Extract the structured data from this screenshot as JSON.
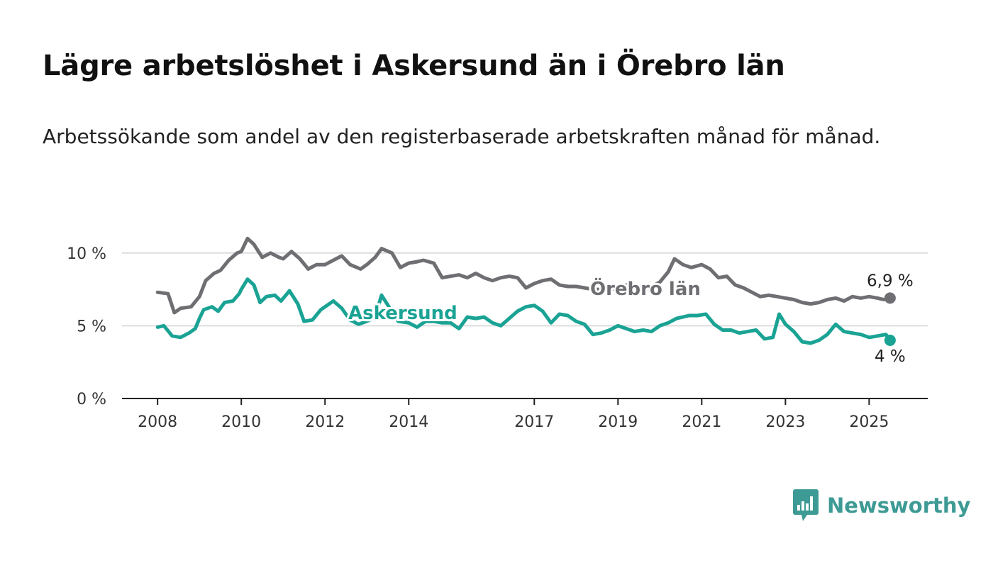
{
  "title": "Lägre arbetslöshet i Askersund än i Örebro län",
  "subtitle": "Arbetssökande som andel av den registerbaserade arbetskraften månad för månad.",
  "brand": {
    "name": "Newsworthy",
    "icon": "bar-chart-speech-bubble-icon"
  },
  "colors": {
    "orebro": "#6f6f73",
    "askersund": "#1aa394",
    "brand": "#3d9a94",
    "grid": "#dddddd",
    "axis": "#222222"
  },
  "chart_data": {
    "type": "line",
    "title": "Lägre arbetslöshet i Askersund än i Örebro län",
    "x_ticks": [
      2008,
      2010,
      2012,
      2014,
      2017,
      2019,
      2021,
      2023,
      2025
    ],
    "x_tick_labels": [
      "2008",
      "2010",
      "2012",
      "2014",
      "2017",
      "2019",
      "2021",
      "2023",
      "2025"
    ],
    "y_ticks": [
      0,
      5,
      10
    ],
    "y_tick_labels": [
      "0 %",
      "5 %",
      "10 %"
    ],
    "xlim": [
      2007.15,
      2026.4
    ],
    "ylim": [
      0,
      11.5
    ],
    "grid": "horizontal",
    "legend": "inline labels",
    "series": [
      {
        "name": "Örebro län",
        "end_label": "6,9 %",
        "x": [
          2008.0,
          2008.25,
          2008.4,
          2008.55,
          2008.8,
          2009.0,
          2009.15,
          2009.35,
          2009.5,
          2009.7,
          2009.9,
          2010.0,
          2010.15,
          2010.3,
          2010.5,
          2010.7,
          2010.9,
          2011.0,
          2011.2,
          2011.4,
          2011.6,
          2011.8,
          2012.0,
          2012.2,
          2012.4,
          2012.6,
          2012.85,
          2013.0,
          2013.2,
          2013.35,
          2013.6,
          2013.8,
          2014.0,
          2014.2,
          2014.35,
          2014.6,
          2014.8,
          2015.0,
          2015.2,
          2015.4,
          2015.6,
          2015.8,
          2016.0,
          2016.2,
          2016.4,
          2016.6,
          2016.8,
          2017.0,
          2017.2,
          2017.4,
          2017.6,
          2017.8,
          2018.0,
          2018.2,
          2018.4,
          2018.6,
          2018.8,
          2019.0,
          2019.2,
          2019.4,
          2019.6,
          2019.8,
          2020.0,
          2020.2,
          2020.35,
          2020.55,
          2020.75,
          2021.0,
          2021.2,
          2021.4,
          2021.6,
          2021.8,
          2022.0,
          2022.2,
          2022.4,
          2022.6,
          2022.8,
          2023.0,
          2023.2,
          2023.4,
          2023.6,
          2023.8,
          2024.0,
          2024.2,
          2024.4,
          2024.6,
          2024.8,
          2025.0,
          2025.2,
          2025.35,
          2025.5
        ],
        "y": [
          7.3,
          7.2,
          5.9,
          6.2,
          6.3,
          7.0,
          8.1,
          8.6,
          8.8,
          9.5,
          10.0,
          10.1,
          11.0,
          10.6,
          9.7,
          10.0,
          9.7,
          9.6,
          10.1,
          9.6,
          8.9,
          9.2,
          9.2,
          9.5,
          9.8,
          9.2,
          8.9,
          9.2,
          9.7,
          10.3,
          10.0,
          9.0,
          9.3,
          9.4,
          9.5,
          9.3,
          8.3,
          8.4,
          8.5,
          8.3,
          8.6,
          8.3,
          8.1,
          8.3,
          8.4,
          8.3,
          7.6,
          7.9,
          8.1,
          8.2,
          7.8,
          7.7,
          7.7,
          7.6,
          7.5,
          7.5,
          7.5,
          7.6,
          7.8,
          7.6,
          7.5,
          7.7,
          8.0,
          8.7,
          9.6,
          9.2,
          9.0,
          9.2,
          8.9,
          8.3,
          8.4,
          7.8,
          7.6,
          7.3,
          7.0,
          7.1,
          7.0,
          6.9,
          6.8,
          6.6,
          6.5,
          6.6,
          6.8,
          6.9,
          6.7,
          7.0,
          6.9,
          7.0,
          6.9,
          6.8,
          6.9
        ]
      },
      {
        "name": "Askersund",
        "end_label": "4 %",
        "x": [
          2008.0,
          2008.15,
          2008.35,
          2008.55,
          2008.75,
          2008.9,
          2009.0,
          2009.1,
          2009.3,
          2009.45,
          2009.6,
          2009.8,
          2009.95,
          2010.0,
          2010.15,
          2010.3,
          2010.45,
          2010.6,
          2010.8,
          2010.95,
          2011.15,
          2011.35,
          2011.5,
          2011.7,
          2011.9,
          2012.0,
          2012.2,
          2012.4,
          2012.6,
          2012.8,
          2013.0,
          2013.2,
          2013.35,
          2013.55,
          2013.75,
          2014.0,
          2014.2,
          2014.4,
          2014.6,
          2014.8,
          2015.0,
          2015.2,
          2015.4,
          2015.6,
          2015.8,
          2016.0,
          2016.2,
          2016.4,
          2016.6,
          2016.8,
          2017.0,
          2017.2,
          2017.4,
          2017.6,
          2017.8,
          2018.0,
          2018.2,
          2018.4,
          2018.6,
          2018.8,
          2019.0,
          2019.2,
          2019.4,
          2019.6,
          2019.8,
          2020.0,
          2020.2,
          2020.4,
          2020.55,
          2020.7,
          2020.9,
          2021.1,
          2021.3,
          2021.5,
          2021.7,
          2021.9,
          2022.1,
          2022.3,
          2022.5,
          2022.7,
          2022.85,
          2023.0,
          2023.2,
          2023.4,
          2023.6,
          2023.8,
          2024.0,
          2024.2,
          2024.4,
          2024.6,
          2024.8,
          2025.0,
          2025.2,
          2025.4,
          2025.5
        ],
        "y": [
          4.9,
          5.0,
          4.3,
          4.2,
          4.5,
          4.8,
          5.5,
          6.1,
          6.3,
          6.0,
          6.6,
          6.7,
          7.2,
          7.5,
          8.2,
          7.8,
          6.6,
          7.0,
          7.1,
          6.7,
          7.4,
          6.5,
          5.3,
          5.4,
          6.1,
          6.3,
          6.7,
          6.2,
          5.4,
          5.1,
          5.3,
          5.6,
          7.1,
          6.2,
          5.3,
          5.2,
          4.9,
          5.3,
          5.3,
          5.2,
          5.2,
          4.8,
          5.6,
          5.5,
          5.6,
          5.2,
          5.0,
          5.5,
          6.0,
          6.3,
          6.4,
          6.0,
          5.2,
          5.8,
          5.7,
          5.3,
          5.1,
          4.4,
          4.5,
          4.7,
          5.0,
          4.8,
          4.6,
          4.7,
          4.6,
          5.0,
          5.2,
          5.5,
          5.6,
          5.7,
          5.7,
          5.8,
          5.1,
          4.7,
          4.7,
          4.5,
          4.6,
          4.7,
          4.1,
          4.2,
          5.8,
          5.1,
          4.6,
          3.9,
          3.8,
          4.0,
          4.4,
          5.1,
          4.6,
          4.5,
          4.4,
          4.2,
          4.3,
          4.4,
          4.0
        ]
      }
    ]
  }
}
